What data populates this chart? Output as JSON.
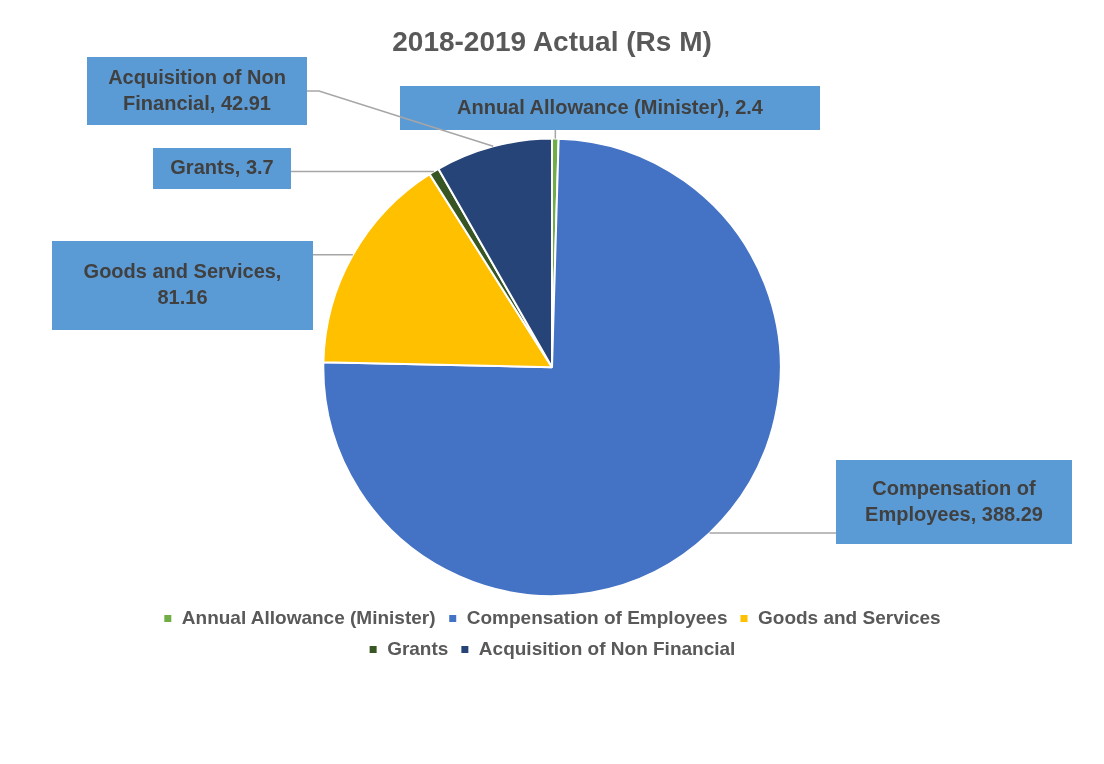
{
  "chart_data": {
    "type": "pie",
    "title": "2018-2019 Actual (Rs M)",
    "categories": [
      "Annual Allowance (Minister)",
      "Compensation of Employees",
      "Goods and Services",
      "Grants",
      "Acquisition of Non Financial"
    ],
    "values": [
      2.4,
      388.29,
      81.16,
      3.7,
      42.91
    ],
    "colors": [
      "#70ad47",
      "#4472c4",
      "#ffc000",
      "#375623",
      "#264478"
    ],
    "value_labels": [
      "Annual Allowance (Minister), 2.4",
      "Compensation of Employees, 388.29",
      "Goods and Services, 81.16",
      "Grants, 3.7",
      "Acquisition of Non Financial, 42.91"
    ],
    "data_labels": true,
    "legend": "bottom"
  }
}
